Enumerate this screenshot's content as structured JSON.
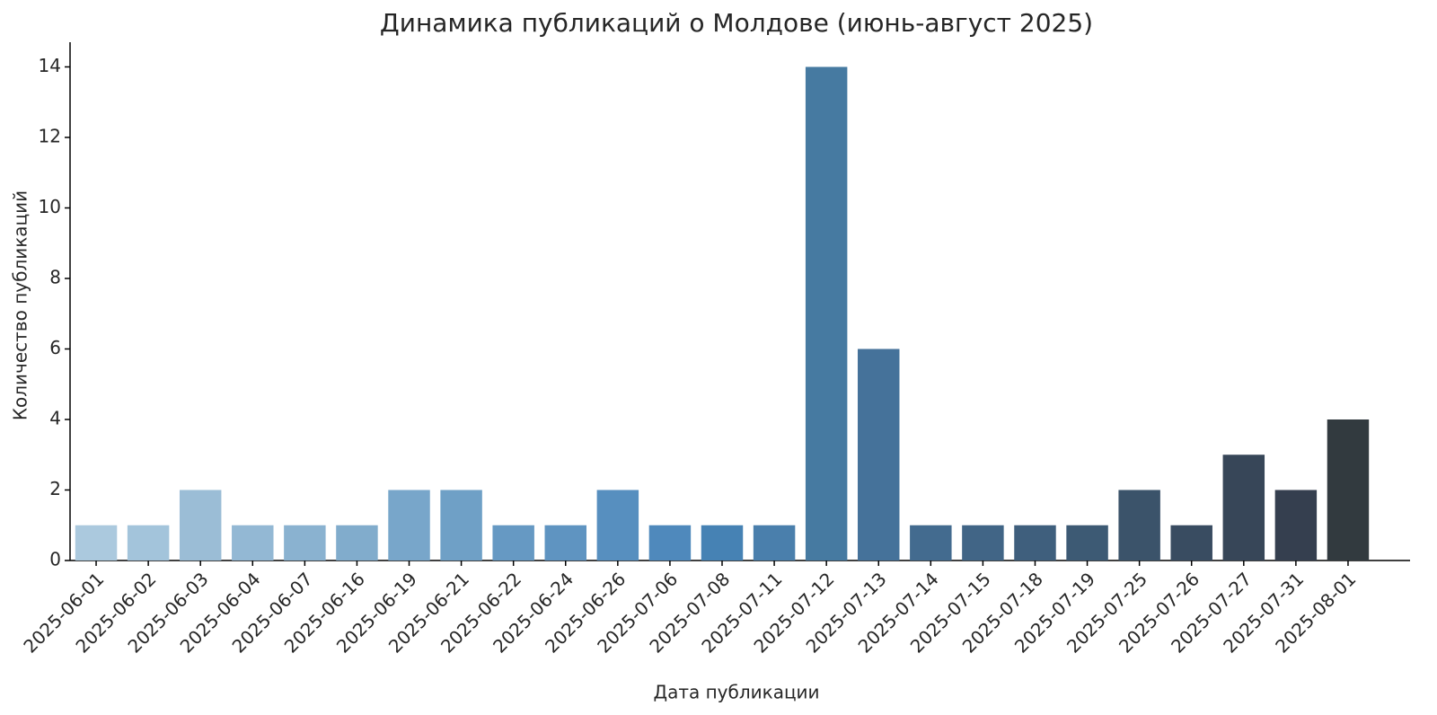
{
  "chart_data": {
    "type": "bar",
    "title": "Динамика публикаций о Молдове (июнь-август 2025)",
    "x_label": "Дата публикации",
    "y_label": "Количество публикаций",
    "categories": [
      "2025-06-01",
      "2025-06-02",
      "2025-06-03",
      "2025-06-04",
      "2025-06-07",
      "2025-06-16",
      "2025-06-19",
      "2025-06-21",
      "2025-06-22",
      "2025-06-24",
      "2025-06-26",
      "2025-07-06",
      "2025-07-08",
      "2025-07-11",
      "2025-07-12",
      "2025-07-13",
      "2025-07-14",
      "2025-07-15",
      "2025-07-18",
      "2025-07-19",
      "2025-07-25",
      "2025-07-26",
      "2025-07-27",
      "2025-07-31",
      "2025-08-01"
    ],
    "values": [
      1,
      1,
      2,
      1,
      1,
      1,
      2,
      2,
      1,
      1,
      2,
      1,
      1,
      1,
      14,
      6,
      1,
      1,
      1,
      1,
      2,
      1,
      3,
      2,
      4
    ],
    "colors": [
      "#abc9de",
      "#a3c4db",
      "#9bbdd6",
      "#93b8d4",
      "#8ab2d0",
      "#81accc",
      "#78a6ca",
      "#6fa0c6",
      "#6699c3",
      "#5f94c1",
      "#578fbf",
      "#4f89bc",
      "#4682b4",
      "#4a7fac",
      "#467aa1",
      "#45729a",
      "#436b8f",
      "#416586",
      "#3f5f7d",
      "#3d5a74",
      "#3b536a",
      "#394c61",
      "#374658",
      "#353f4f",
      "#323a3f"
    ],
    "ylim": [
      0,
      14.7
    ],
    "yticks": [
      0,
      2,
      4,
      6,
      8,
      10,
      12,
      14
    ],
    "grid": false
  }
}
